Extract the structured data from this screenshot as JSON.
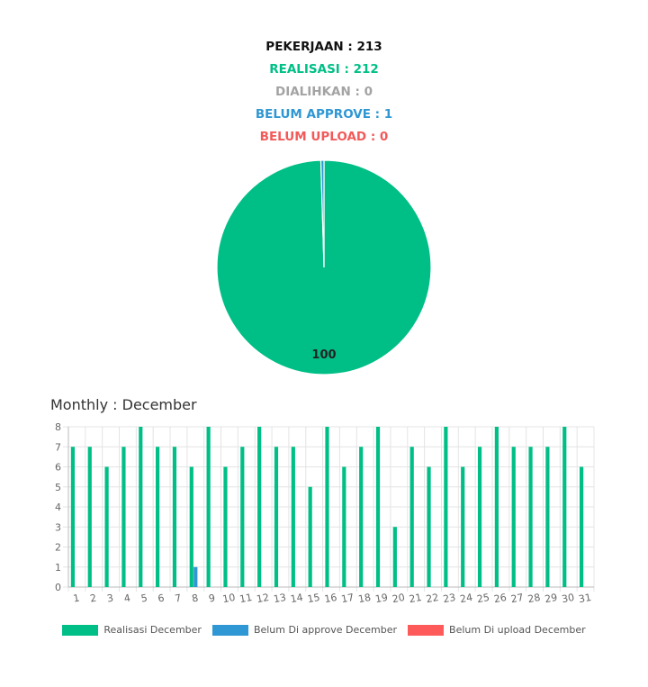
{
  "summary": {
    "pekerjaan": "PEKERJAAN : 213",
    "realisasi": "REALISASI : 212",
    "dialihkan": "DIALIHKAN : 0",
    "belum_approve": "BELUM APPROVE : 1",
    "belum_upload": "BELUM UPLOAD : 0"
  },
  "colors": {
    "pekerjaan": "#111111",
    "realisasi": "#00bf86",
    "dialihkan": "#a3a3a3",
    "belum_approve": "#2f97d3",
    "belum_upload": "#f25a5a"
  },
  "chart_data": [
    {
      "type": "pie",
      "categories": [
        "Realisasi",
        "Belum Approve"
      ],
      "values": [
        212,
        1
      ],
      "colors": [
        "#00bf86",
        "#2f97d3"
      ],
      "labels": [
        "100"
      ]
    },
    {
      "type": "bar",
      "title": "Monthly : December",
      "categories": [
        "1",
        "2",
        "3",
        "4",
        "5",
        "6",
        "7",
        "8",
        "9",
        "10",
        "11",
        "12",
        "13",
        "14",
        "15",
        "16",
        "17",
        "18",
        "19",
        "20",
        "21",
        "22",
        "23",
        "24",
        "25",
        "26",
        "27",
        "28",
        "29",
        "30",
        "31"
      ],
      "series": [
        {
          "name": "Realisasi December",
          "color": "#00bf86",
          "values": [
            7,
            7,
            6,
            7,
            8,
            7,
            7,
            6,
            8,
            6,
            7,
            8,
            7,
            7,
            5,
            8,
            6,
            7,
            8,
            3,
            7,
            6,
            8,
            6,
            7,
            8,
            7,
            7,
            7,
            8,
            6
          ]
        },
        {
          "name": "Belum Di approve December",
          "color": "#2f97d3",
          "values": [
            0,
            0,
            0,
            0,
            0,
            0,
            0,
            1,
            0,
            0,
            0,
            0,
            0,
            0,
            0,
            0,
            0,
            0,
            0,
            0,
            0,
            0,
            0,
            0,
            0,
            0,
            0,
            0,
            0,
            0,
            0
          ]
        },
        {
          "name": "Belum Di upload December",
          "color": "#ff5a5a",
          "values": [
            0,
            0,
            0,
            0,
            0,
            0,
            0,
            0,
            0,
            0,
            0,
            0,
            0,
            0,
            0,
            0,
            0,
            0,
            0,
            0,
            0,
            0,
            0,
            0,
            0,
            0,
            0,
            0,
            0,
            0,
            0
          ]
        }
      ],
      "ylim": [
        0,
        8
      ],
      "yticks": [
        "0",
        "1",
        "2",
        "3",
        "4",
        "5",
        "6",
        "7",
        "8"
      ],
      "grid": true,
      "legend_position": "bottom"
    }
  ]
}
